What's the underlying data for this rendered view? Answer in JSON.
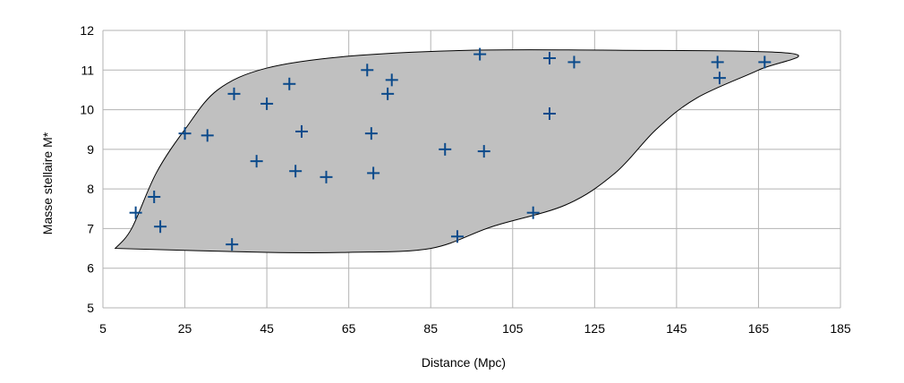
{
  "chart_data": {
    "type": "scatter",
    "title": "",
    "xlabel": "Distance (Mpc)",
    "ylabel": "Masse stellaire M*",
    "xlim": [
      5,
      185
    ],
    "ylim": [
      5,
      12
    ],
    "xticks": [
      "5",
      "25",
      "45",
      "65",
      "85",
      "105",
      "125",
      "145",
      "165",
      "185"
    ],
    "yticks": [
      "5",
      "6",
      "7",
      "8",
      "9",
      "10",
      "11",
      "12"
    ],
    "grid": true,
    "legend": "none",
    "marker": "plus",
    "marker_color": "#0b4a8b",
    "region_fill": "#c0c0c0",
    "region_outline": [
      [
        8,
        6.5
      ],
      [
        12,
        7.0
      ],
      [
        18,
        8.4
      ],
      [
        25,
        9.5
      ],
      [
        33,
        10.5
      ],
      [
        45,
        11.05
      ],
      [
        65,
        11.35
      ],
      [
        95,
        11.5
      ],
      [
        130,
        11.5
      ],
      [
        173,
        11.42
      ],
      [
        165,
        11.0
      ],
      [
        150,
        10.3
      ],
      [
        140,
        9.5
      ],
      [
        130,
        8.4
      ],
      [
        118,
        7.6
      ],
      [
        100,
        7.05
      ],
      [
        85,
        6.5
      ],
      [
        65,
        6.4
      ],
      [
        45,
        6.4
      ],
      [
        8,
        6.5
      ]
    ],
    "series": [
      {
        "x": [
          13,
          17.5,
          19,
          25,
          30.5,
          36.5,
          37,
          42.5,
          45,
          50.5,
          52,
          53.5,
          59.5,
          69.5,
          70.5,
          71,
          74.5,
          75.5,
          88.5,
          91.5,
          97,
          98,
          110,
          114,
          114,
          120,
          155,
          155.5,
          166.5
        ],
        "y": [
          7.4,
          7.8,
          7.05,
          9.4,
          9.35,
          6.6,
          10.4,
          8.7,
          10.15,
          10.65,
          8.45,
          9.45,
          8.3,
          11.0,
          9.4,
          8.4,
          10.4,
          10.75,
          9.0,
          6.8,
          11.4,
          8.95,
          7.4,
          11.3,
          9.9,
          11.2,
          11.2,
          10.8,
          11.2
        ]
      }
    ]
  }
}
